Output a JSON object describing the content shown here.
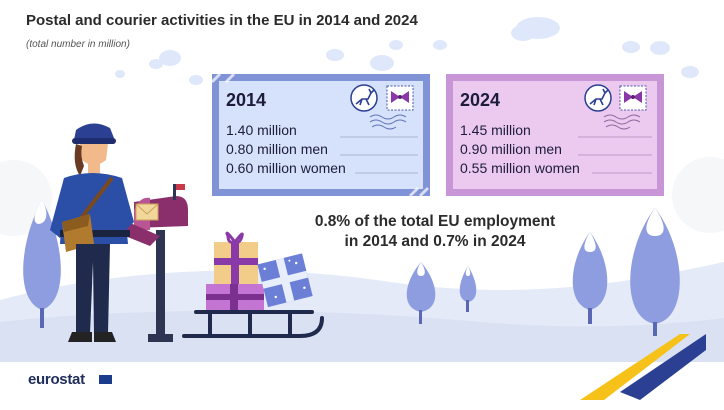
{
  "header": {
    "title": "Postal and courier activities in the EU in 2014 and 2024",
    "subtitle": "(total number in million)"
  },
  "cards": [
    {
      "year": "2014",
      "total": "1.40 million",
      "men": "0.80 million men",
      "women": "0.60 million women",
      "border_color": "#7f93d6",
      "fill_color": "#d6e1fb"
    },
    {
      "year": "2024",
      "total": "1.45 million",
      "men": "0.90 million men",
      "women": "0.55 million women",
      "border_color": "#c896d6",
      "fill_color": "#ecc9ee"
    }
  ],
  "statement": {
    "line1": "0.8% of the total EU employment",
    "line2": "in 2014 and 0.7% in 2024"
  },
  "footer": {
    "brand": "eurostat"
  },
  "icons": [
    "postal-worker",
    "mailbox-icon",
    "reindeer-stamp-icon",
    "bow-stamp-icon",
    "postmark-icon",
    "gift-icon",
    "sled-icon",
    "tree-icon",
    "cloud-icon"
  ],
  "colors": {
    "snow": "#e3e9f6",
    "tree": "#8e9ddf",
    "accent_yellow": "#f6c21a",
    "accent_blue": "#2b3f93"
  }
}
